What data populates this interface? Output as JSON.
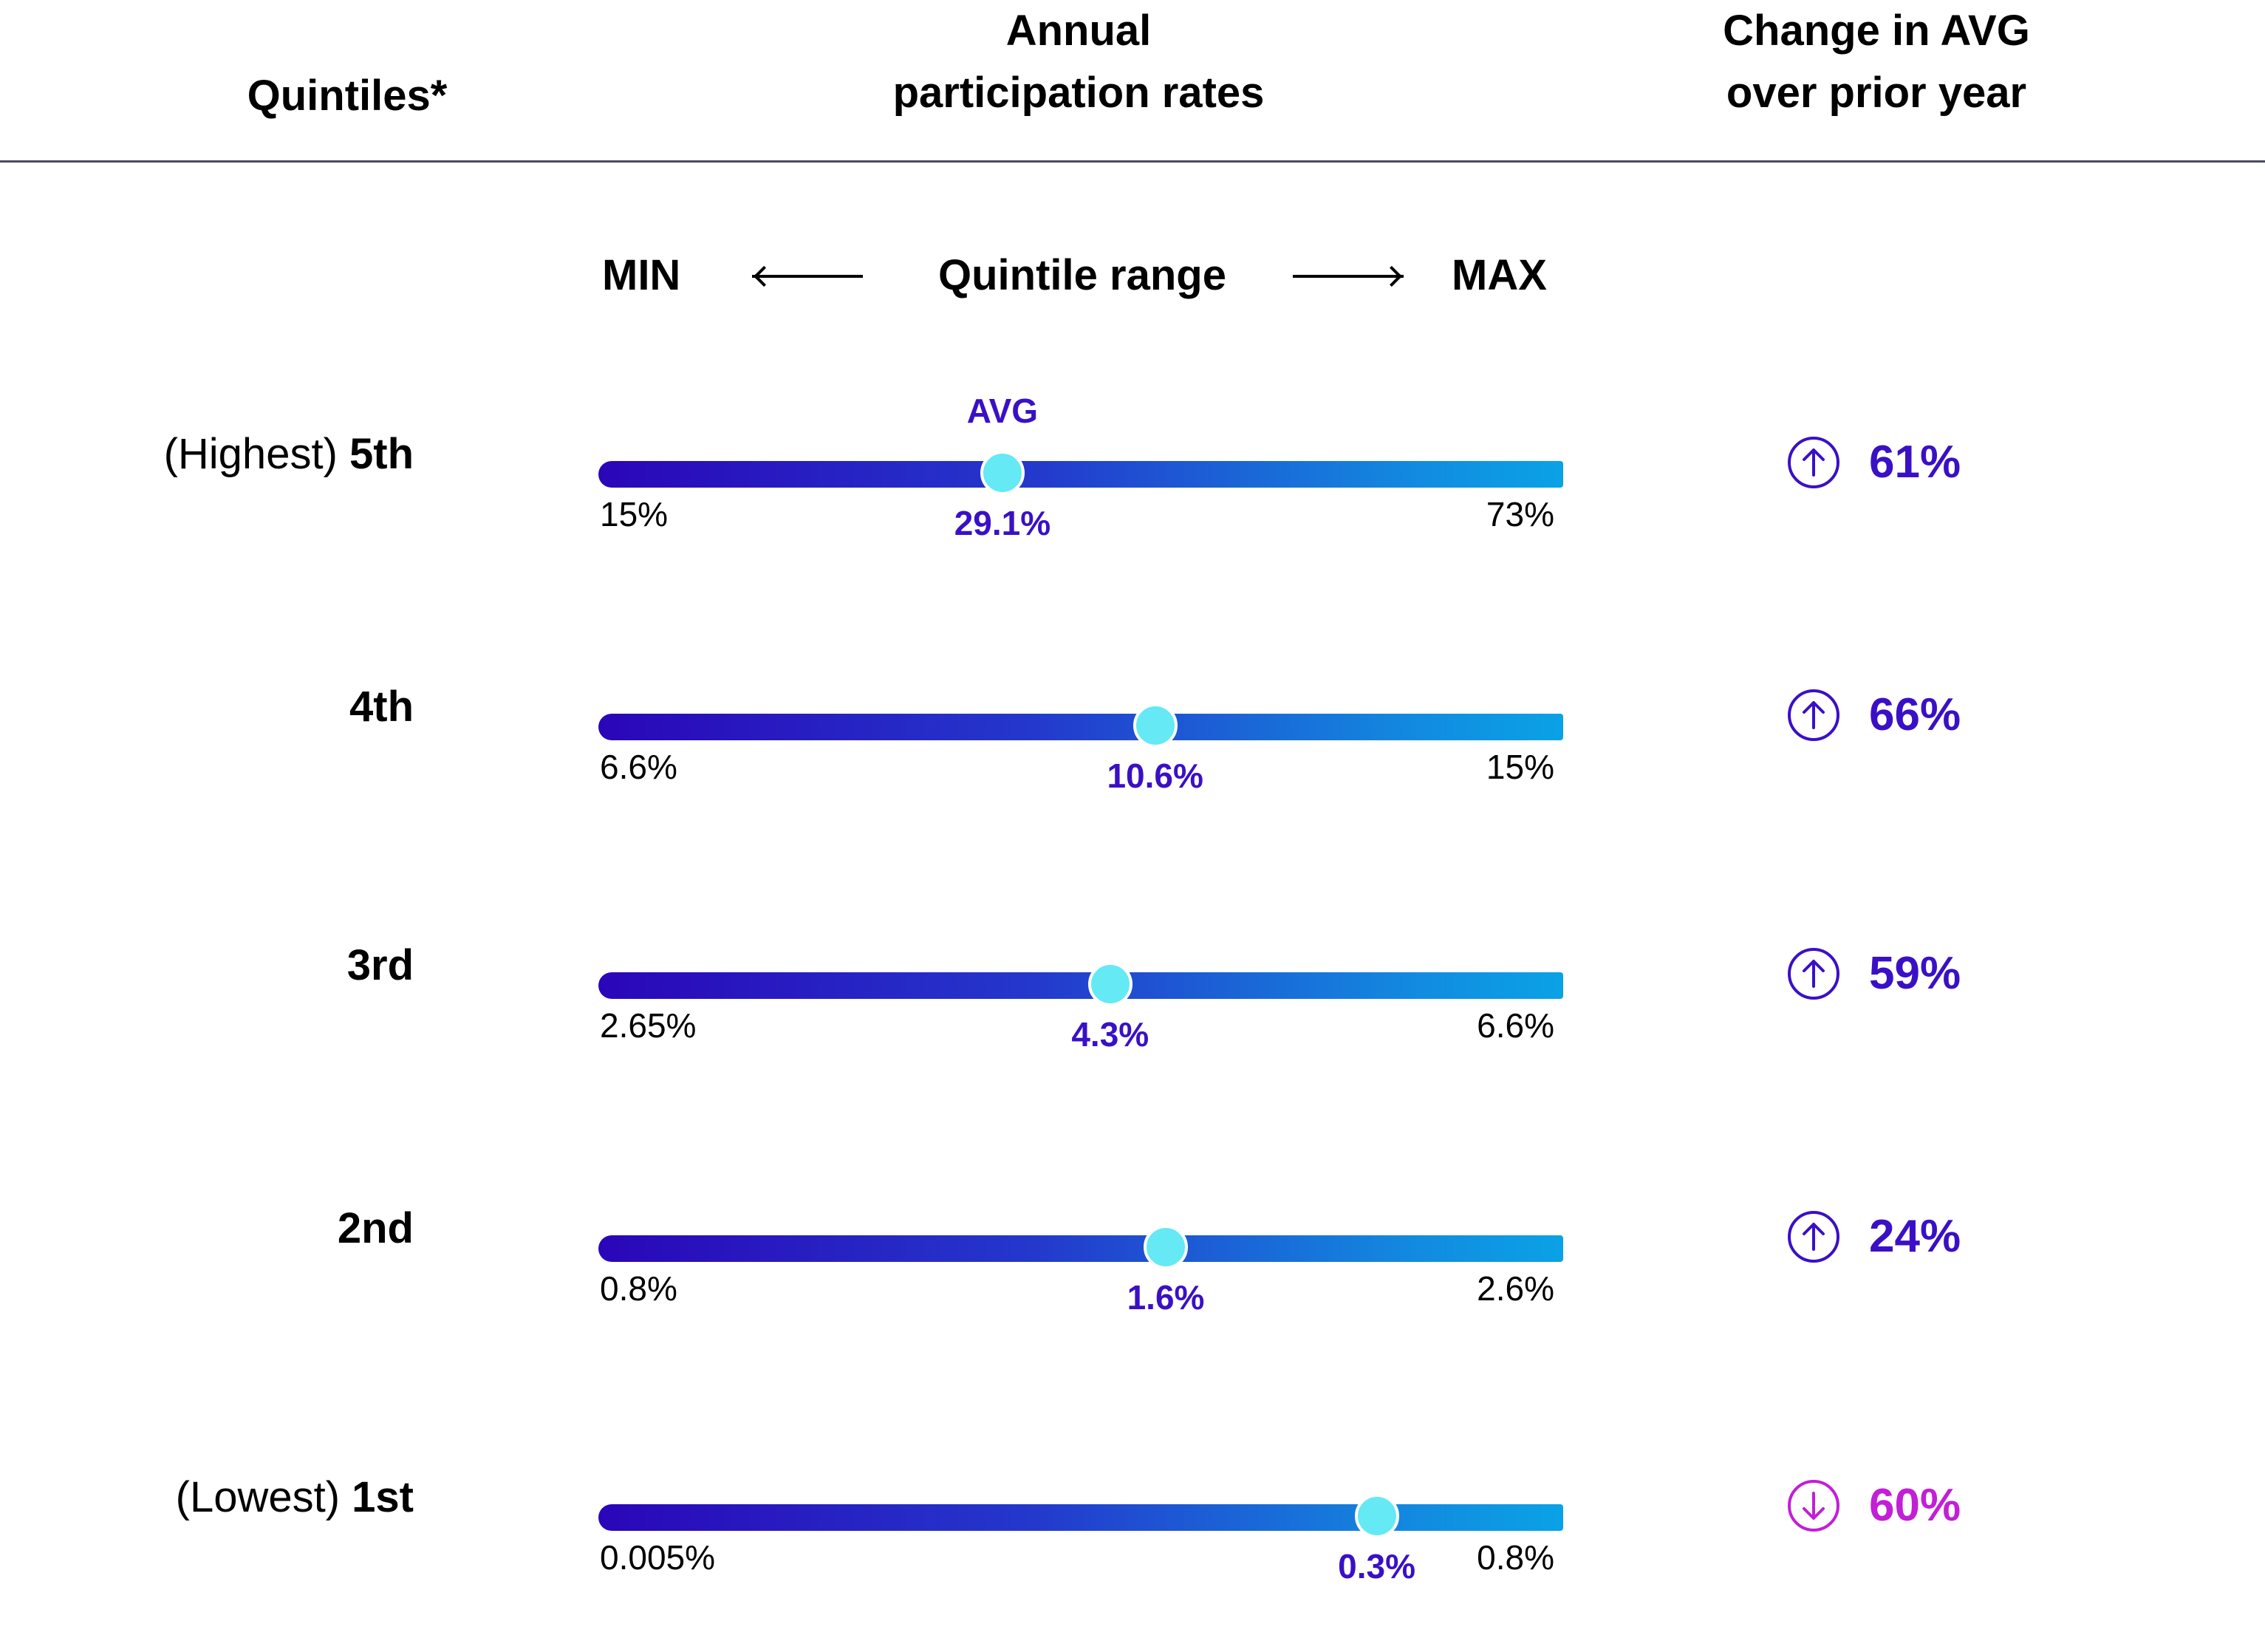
{
  "header": {
    "quintiles": "Quintiles*",
    "annual_line1": "Annual",
    "annual_line2": "participation rates",
    "change_line1": "Change in AVG",
    "change_line2": "over prior year"
  },
  "legend": {
    "min": "MIN",
    "range": "Quintile range",
    "max": "MAX"
  },
  "avg_marker_label": "AVG",
  "colors": {
    "accent": "#3a10c6",
    "up": "#3a10c6",
    "down": "#c21fd6",
    "knob": "#65e9f4",
    "bar_start": "#2a06b8",
    "bar_end": "#0aa2e6"
  },
  "rows": [
    {
      "prefix": "(Highest) ",
      "rank": "5th",
      "min": "15%",
      "avg": "29.1%",
      "max": "73%",
      "change": "61%",
      "direction": "up",
      "icon": "arrow-up-circle-icon"
    },
    {
      "prefix": "",
      "rank": "4th",
      "min": "6.6%",
      "avg": "10.6%",
      "max": "15%",
      "change": "66%",
      "direction": "up",
      "icon": "arrow-up-circle-icon"
    },
    {
      "prefix": "",
      "rank": "3rd",
      "min": "2.65%",
      "avg": "4.3%",
      "max": "6.6%",
      "change": "59%",
      "direction": "up",
      "icon": "arrow-up-circle-icon"
    },
    {
      "prefix": "",
      "rank": "2nd",
      "min": "0.8%",
      "avg": "1.6%",
      "max": "2.6%",
      "change": "24%",
      "direction": "up",
      "icon": "arrow-up-circle-icon"
    },
    {
      "prefix": "(Lowest) ",
      "rank": "1st",
      "min": "0.005%",
      "avg": "0.3%",
      "max": "0.8%",
      "change": "60%",
      "direction": "down",
      "icon": "arrow-down-circle-icon"
    }
  ],
  "chart_data": {
    "type": "table",
    "columns": [
      "Quintiles*",
      "Annual participation rates",
      "Change in AVG over prior year"
    ],
    "rows": [
      {
        "quintile": "(Highest) 5th",
        "min": 15,
        "avg": 29.1,
        "max": 73,
        "change": 61,
        "direction": "up"
      },
      {
        "quintile": "4th",
        "min": 6.6,
        "avg": 10.6,
        "max": 15,
        "change": 66,
        "direction": "up"
      },
      {
        "quintile": "3rd",
        "min": 2.65,
        "avg": 4.3,
        "max": 6.6,
        "change": 59,
        "direction": "up"
      },
      {
        "quintile": "2nd",
        "min": 0.8,
        "avg": 1.6,
        "max": 2.6,
        "change": 24,
        "direction": "up"
      },
      {
        "quintile": "(Lowest) 1st",
        "min": 0.005,
        "avg": 0.3,
        "max": 0.8,
        "change": 60,
        "direction": "down"
      }
    ]
  }
}
